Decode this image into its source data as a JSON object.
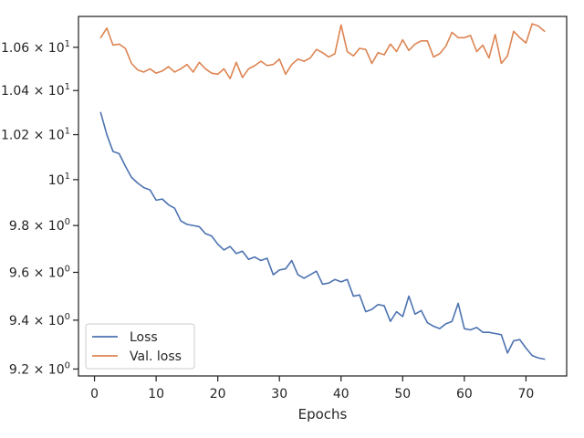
{
  "chart_data": {
    "type": "line",
    "title": "",
    "xlabel": "Epochs",
    "ylabel": "",
    "xlim": [
      -2.6,
      76.6
    ],
    "ylim": [
      9.172,
      10.745
    ],
    "yscale": "log",
    "grid": false,
    "legend_position": "lower-left",
    "xticks": [
      0,
      10,
      20,
      30,
      40,
      50,
      60,
      70
    ],
    "xtick_labels": [
      "0",
      "10",
      "20",
      "30",
      "40",
      "50",
      "60",
      "70"
    ],
    "yticks": [
      9.2,
      9.4,
      9.6,
      9.8,
      10.0,
      10.2,
      10.4,
      10.6
    ],
    "ytick_labels": [
      {
        "base": "9.2 × 10",
        "exp": "0"
      },
      {
        "base": "9.4 × 10",
        "exp": "0"
      },
      {
        "base": "9.6 × 10",
        "exp": "0"
      },
      {
        "base": "9.8 × 10",
        "exp": "0"
      },
      {
        "base": "10",
        "exp": "1"
      },
      {
        "base": "1.02 × 10",
        "exp": "1"
      },
      {
        "base": "1.04 × 10",
        "exp": "1"
      },
      {
        "base": "1.06 × 10",
        "exp": "1"
      }
    ],
    "x": [
      1,
      2,
      3,
      4,
      5,
      6,
      7,
      8,
      9,
      10,
      11,
      12,
      13,
      14,
      15,
      16,
      17,
      18,
      19,
      20,
      21,
      22,
      23,
      24,
      25,
      26,
      27,
      28,
      29,
      30,
      31,
      32,
      33,
      34,
      35,
      36,
      37,
      38,
      39,
      40,
      41,
      42,
      43,
      44,
      45,
      46,
      47,
      48,
      49,
      50,
      51,
      52,
      53,
      54,
      55,
      56,
      57,
      58,
      59,
      60,
      61,
      62,
      63,
      64,
      65,
      66,
      67,
      68,
      69,
      70,
      71,
      72,
      73
    ],
    "series": [
      {
        "name": "Loss",
        "color": "#4c72b0",
        "values": [
          10.3,
          10.2,
          10.125,
          10.115,
          10.06,
          10.01,
          9.985,
          9.965,
          9.955,
          9.91,
          9.915,
          9.89,
          9.875,
          9.82,
          9.805,
          9.8,
          9.795,
          9.765,
          9.755,
          9.72,
          9.695,
          9.71,
          9.68,
          9.69,
          9.655,
          9.665,
          9.65,
          9.66,
          9.59,
          9.61,
          9.615,
          9.65,
          9.59,
          9.575,
          9.59,
          9.605,
          9.55,
          9.555,
          9.57,
          9.56,
          9.57,
          9.5,
          9.505,
          9.435,
          9.445,
          9.465,
          9.46,
          9.395,
          9.435,
          9.415,
          9.5,
          9.425,
          9.44,
          9.39,
          9.375,
          9.365,
          9.385,
          9.395,
          9.47,
          9.365,
          9.36,
          9.37,
          9.35,
          9.35,
          9.345,
          9.34,
          9.265,
          9.315,
          9.32,
          9.285,
          9.255,
          9.245,
          9.24
        ]
      },
      {
        "name": "Val. loss",
        "color": "#dd8452",
        "values": [
          10.645,
          10.69,
          10.61,
          10.615,
          10.595,
          10.525,
          10.495,
          10.485,
          10.5,
          10.48,
          10.49,
          10.51,
          10.485,
          10.5,
          10.52,
          10.485,
          10.53,
          10.5,
          10.48,
          10.475,
          10.5,
          10.455,
          10.53,
          10.46,
          10.5,
          10.515,
          10.535,
          10.515,
          10.52,
          10.545,
          10.475,
          10.52,
          10.545,
          10.535,
          10.55,
          10.59,
          10.575,
          10.555,
          10.57,
          10.705,
          10.58,
          10.56,
          10.595,
          10.59,
          10.525,
          10.575,
          10.565,
          10.615,
          10.58,
          10.635,
          10.585,
          10.615,
          10.63,
          10.63,
          10.555,
          10.57,
          10.605,
          10.67,
          10.645,
          10.645,
          10.655,
          10.58,
          10.61,
          10.55,
          10.66,
          10.525,
          10.56,
          10.675,
          10.645,
          10.62,
          10.71,
          10.7,
          10.675
        ]
      }
    ]
  }
}
